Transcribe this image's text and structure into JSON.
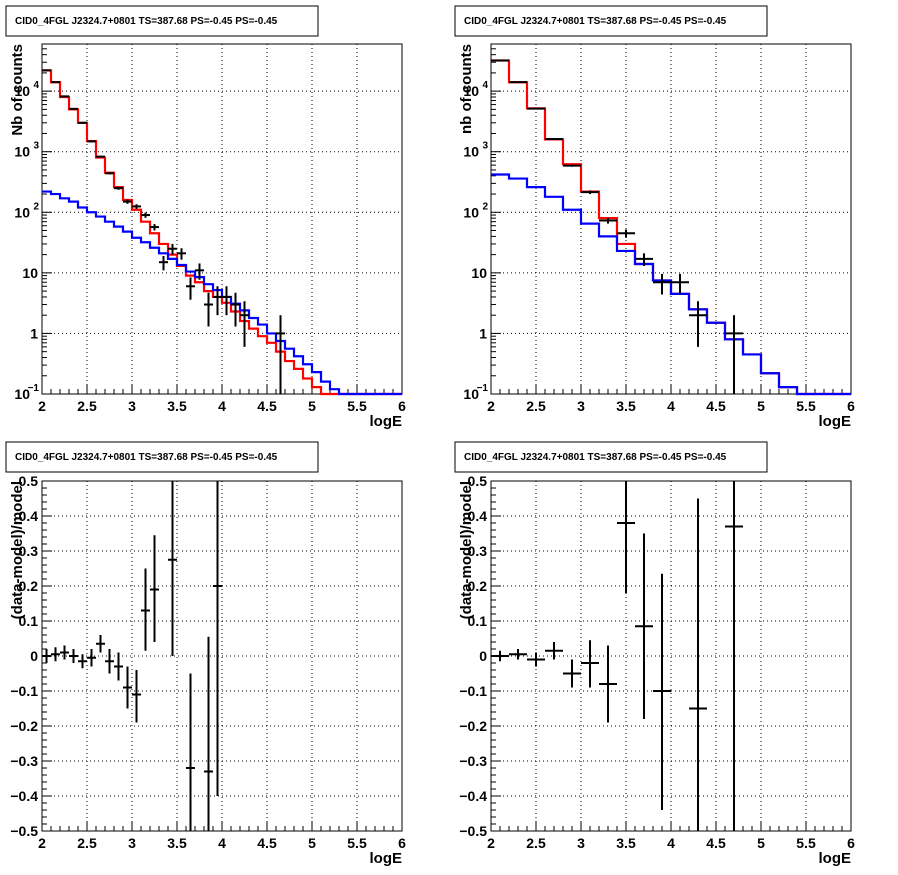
{
  "chart_data": [
    {
      "type": "line",
      "title": "CID0_4FGL J2324.7+0801 TS=387.68 PS=-0.45 PS=-0.45",
      "xlabel": "logE",
      "ylabel": "Nb of counts",
      "xlim": [
        2,
        6
      ],
      "ylim": [
        0.1,
        60000
      ],
      "yscale": "log",
      "grid": true,
      "xticks": [
        "2",
        "2.5",
        "3",
        "3.5",
        "4",
        "4.5",
        "5",
        "5.5",
        "6"
      ],
      "yticks": [
        {
          "v": 0.1,
          "base": "10",
          "exp": "−1"
        },
        {
          "v": 1,
          "base": "1",
          "exp": ""
        },
        {
          "v": 10,
          "base": "10",
          "exp": ""
        },
        {
          "v": 100,
          "base": "10",
          "exp": "2"
        },
        {
          "v": 1000,
          "base": "10",
          "exp": "3"
        },
        {
          "v": 10000,
          "base": "10",
          "exp": "4"
        }
      ],
      "bin_edges": [
        2.0,
        2.1,
        2.2,
        2.3,
        2.4,
        2.5,
        2.6,
        2.7,
        2.8,
        2.9,
        3.0,
        3.1,
        3.2,
        3.3,
        3.4,
        3.5,
        3.6,
        3.7,
        3.8,
        3.9,
        4.0,
        4.1,
        4.2,
        4.3,
        4.4,
        4.5,
        4.6,
        4.7,
        4.8,
        4.9,
        5.0,
        5.1,
        5.2,
        5.3,
        5.4,
        5.5,
        5.6,
        5.7,
        5.8,
        5.9,
        6.0
      ],
      "series": [
        {
          "name": "",
          "color": "#ff0000",
          "values": [
            22000,
            14000,
            8000,
            5000,
            3000,
            1500,
            800,
            450,
            260,
            160,
            110,
            70,
            45,
            30,
            20,
            13,
            9,
            7,
            5,
            4,
            3.2,
            2.3,
            1.6,
            1.2,
            0.9,
            0.7,
            0.5,
            0.35,
            0.26,
            0.18,
            0.13,
            0.1,
            0.1,
            0.1,
            0.1,
            0.1,
            0.1,
            0.1,
            0.1,
            0.1
          ]
        },
        {
          "name": "",
          "color": "#0000ff",
          "values": [
            220,
            200,
            170,
            150,
            120,
            100,
            85,
            70,
            58,
            48,
            38,
            32,
            26,
            21,
            17,
            13.5,
            10.5,
            8.5,
            6.5,
            5.2,
            4,
            3.1,
            2.4,
            1.8,
            1.4,
            1,
            0.75,
            0.56,
            0.42,
            0.31,
            0.23,
            0.16,
            0.12,
            0.1,
            0.1,
            0.1,
            0.1,
            0.1,
            0.1,
            0.1
          ]
        }
      ],
      "data_points": [
        {
          "x": 2.05,
          "xerr": 0.05,
          "y": 22000,
          "ylo": 21500,
          "yhi": 22500
        },
        {
          "x": 2.15,
          "xerr": 0.05,
          "y": 14100,
          "ylo": 13800,
          "yhi": 14400
        },
        {
          "x": 2.25,
          "xerr": 0.05,
          "y": 8200,
          "ylo": 8000,
          "yhi": 8400
        },
        {
          "x": 2.35,
          "xerr": 0.05,
          "y": 5100,
          "ylo": 4950,
          "yhi": 5250
        },
        {
          "x": 2.45,
          "xerr": 0.05,
          "y": 3000,
          "ylo": 2900,
          "yhi": 3100
        },
        {
          "x": 2.55,
          "xerr": 0.05,
          "y": 1480,
          "ylo": 1420,
          "yhi": 1540
        },
        {
          "x": 2.65,
          "xerr": 0.05,
          "y": 830,
          "ylo": 800,
          "yhi": 860
        },
        {
          "x": 2.75,
          "xerr": 0.05,
          "y": 440,
          "ylo": 420,
          "yhi": 460
        },
        {
          "x": 2.85,
          "xerr": 0.05,
          "y": 250,
          "ylo": 235,
          "yhi": 265
        },
        {
          "x": 2.95,
          "xerr": 0.05,
          "y": 150,
          "ylo": 138,
          "yhi": 162
        },
        {
          "x": 3.05,
          "xerr": 0.05,
          "y": 125,
          "ylo": 114,
          "yhi": 136
        },
        {
          "x": 3.15,
          "xerr": 0.05,
          "y": 90,
          "ylo": 81,
          "yhi": 99
        },
        {
          "x": 3.25,
          "xerr": 0.05,
          "y": 57,
          "ylo": 50,
          "yhi": 64
        },
        {
          "x": 3.35,
          "xerr": 0.05,
          "y": 15,
          "ylo": 11,
          "yhi": 19
        },
        {
          "x": 3.45,
          "xerr": 0.05,
          "y": 25,
          "ylo": 20,
          "yhi": 30
        },
        {
          "x": 3.55,
          "xerr": 0.05,
          "y": 21,
          "ylo": 16.5,
          "yhi": 25.5
        },
        {
          "x": 3.65,
          "xerr": 0.05,
          "y": 6,
          "ylo": 3.6,
          "yhi": 8.4
        },
        {
          "x": 3.75,
          "xerr": 0.05,
          "y": 11,
          "ylo": 7.7,
          "yhi": 14.3
        },
        {
          "x": 3.85,
          "xerr": 0.05,
          "y": 3,
          "ylo": 1.3,
          "yhi": 4.7
        },
        {
          "x": 3.95,
          "xerr": 0.05,
          "y": 4,
          "ylo": 2,
          "yhi": 6
        },
        {
          "x": 4.05,
          "xerr": 0.05,
          "y": 4,
          "ylo": 2,
          "yhi": 6
        },
        {
          "x": 4.15,
          "xerr": 0.05,
          "y": 3,
          "ylo": 1.3,
          "yhi": 4.7
        },
        {
          "x": 4.25,
          "xerr": 0.05,
          "y": 2,
          "ylo": 0.6,
          "yhi": 3.4
        },
        {
          "x": 4.65,
          "xerr": 0.05,
          "y": 1,
          "ylo": 0.1,
          "yhi": 2
        }
      ]
    },
    {
      "type": "line",
      "title": "CID0_4FGL J2324.7+0801 TS=387.68 PS=-0.45 PS=-0.45",
      "xlabel": "logE",
      "ylabel": "nb of counts",
      "xlim": [
        2,
        6
      ],
      "ylim": [
        0.1,
        60000
      ],
      "yscale": "log",
      "grid": true,
      "xticks": [
        "2",
        "2.5",
        "3",
        "3.5",
        "4",
        "4.5",
        "5",
        "5.5",
        "6"
      ],
      "yticks": [
        {
          "v": 0.1,
          "base": "10",
          "exp": "−1"
        },
        {
          "v": 1,
          "base": "1",
          "exp": ""
        },
        {
          "v": 10,
          "base": "10",
          "exp": ""
        },
        {
          "v": 100,
          "base": "10",
          "exp": "2"
        },
        {
          "v": 1000,
          "base": "10",
          "exp": "3"
        },
        {
          "v": 10000,
          "base": "10",
          "exp": "4"
        }
      ],
      "bin_edges": [
        2.0,
        2.2,
        2.4,
        2.6,
        2.8,
        3.0,
        3.2,
        3.4,
        3.6,
        3.8,
        4.0,
        4.2,
        4.4,
        4.6,
        4.8,
        5.0,
        5.2,
        5.4,
        5.6,
        5.8,
        6.0
      ],
      "series": [
        {
          "name": "",
          "color": "#ff0000",
          "values": [
            32000,
            14000,
            5200,
            1600,
            620,
            220,
            80,
            30,
            14,
            7.5,
            4.5,
            2.5,
            1.5,
            0.8,
            0.45,
            0.22,
            0.13,
            0.1,
            0.1,
            0.1
          ]
        },
        {
          "name": "",
          "color": "#0000ff",
          "values": [
            420,
            360,
            260,
            180,
            110,
            65,
            40,
            23,
            14,
            7.5,
            4.5,
            2.5,
            1.5,
            0.8,
            0.45,
            0.22,
            0.13,
            0.1,
            0.1,
            0.1
          ]
        }
      ],
      "data_points": [
        {
          "x": 2.1,
          "xerr": 0.1,
          "y": 32000,
          "ylo": 31600,
          "yhi": 32400
        },
        {
          "x": 2.3,
          "xerr": 0.1,
          "y": 14100,
          "ylo": 13850,
          "yhi": 14350
        },
        {
          "x": 2.5,
          "xerr": 0.1,
          "y": 5150,
          "ylo": 5000,
          "yhi": 5300
        },
        {
          "x": 2.7,
          "xerr": 0.1,
          "y": 1620,
          "ylo": 1580,
          "yhi": 1660
        },
        {
          "x": 2.9,
          "xerr": 0.1,
          "y": 590,
          "ylo": 565,
          "yhi": 615
        },
        {
          "x": 3.1,
          "xerr": 0.1,
          "y": 215,
          "ylo": 200,
          "yhi": 230
        },
        {
          "x": 3.3,
          "xerr": 0.1,
          "y": 73,
          "ylo": 65,
          "yhi": 81
        },
        {
          "x": 3.5,
          "xerr": 0.1,
          "y": 45,
          "ylo": 38,
          "yhi": 52
        },
        {
          "x": 3.7,
          "xerr": 0.1,
          "y": 17,
          "ylo": 13,
          "yhi": 21
        },
        {
          "x": 3.9,
          "xerr": 0.1,
          "y": 7,
          "ylo": 4.4,
          "yhi": 9.6
        },
        {
          "x": 4.1,
          "xerr": 0.1,
          "y": 7,
          "ylo": 4.4,
          "yhi": 9.6
        },
        {
          "x": 4.3,
          "xerr": 0.1,
          "y": 2,
          "ylo": 0.6,
          "yhi": 3.4
        },
        {
          "x": 4.7,
          "xerr": 0.1,
          "y": 1,
          "ylo": 0.1,
          "yhi": 2
        }
      ]
    },
    {
      "type": "scatter",
      "title": "CID0_4FGL J2324.7+0801 TS=387.68 PS=-0.45 PS=-0.45",
      "xlabel": "logE",
      "ylabel": "(data-model)/model",
      "xlim": [
        2,
        6
      ],
      "ylim": [
        -0.5,
        0.5
      ],
      "yscale": "linear",
      "grid": true,
      "xticks": [
        "2",
        "2.5",
        "3",
        "3.5",
        "4",
        "4.5",
        "5",
        "5.5",
        "6"
      ],
      "yticks": [
        {
          "v": -0.5,
          "base": "−0.5",
          "exp": ""
        },
        {
          "v": -0.4,
          "base": "−0.4",
          "exp": ""
        },
        {
          "v": -0.3,
          "base": "−0.3",
          "exp": ""
        },
        {
          "v": -0.2,
          "base": "−0.2",
          "exp": ""
        },
        {
          "v": -0.1,
          "base": "−0.1",
          "exp": ""
        },
        {
          "v": 0,
          "base": "0",
          "exp": ""
        },
        {
          "v": 0.1,
          "base": "0.1",
          "exp": ""
        },
        {
          "v": 0.2,
          "base": "0.2",
          "exp": ""
        },
        {
          "v": 0.3,
          "base": "0.3",
          "exp": ""
        },
        {
          "v": 0.4,
          "base": "0.4",
          "exp": ""
        },
        {
          "v": 0.5,
          "base": "0.5",
          "exp": ""
        }
      ],
      "data_points": [
        {
          "x": 2.05,
          "xerr": 0.05,
          "y": 0.0,
          "ylo": -0.02,
          "yhi": 0.02
        },
        {
          "x": 2.15,
          "xerr": 0.05,
          "y": 0.005,
          "ylo": -0.015,
          "yhi": 0.025
        },
        {
          "x": 2.25,
          "xerr": 0.05,
          "y": 0.01,
          "ylo": -0.01,
          "yhi": 0.03
        },
        {
          "x": 2.35,
          "xerr": 0.05,
          "y": 0.0,
          "ylo": -0.02,
          "yhi": 0.02
        },
        {
          "x": 2.45,
          "xerr": 0.05,
          "y": -0.015,
          "ylo": -0.035,
          "yhi": 0.005
        },
        {
          "x": 2.55,
          "xerr": 0.05,
          "y": -0.005,
          "ylo": -0.03,
          "yhi": 0.02
        },
        {
          "x": 2.65,
          "xerr": 0.05,
          "y": 0.035,
          "ylo": 0.01,
          "yhi": 0.06
        },
        {
          "x": 2.75,
          "xerr": 0.05,
          "y": -0.015,
          "ylo": -0.05,
          "yhi": 0.02
        },
        {
          "x": 2.85,
          "xerr": 0.05,
          "y": -0.03,
          "ylo": -0.07,
          "yhi": 0.01
        },
        {
          "x": 2.95,
          "xerr": 0.05,
          "y": -0.09,
          "ylo": -0.15,
          "yhi": -0.03
        },
        {
          "x": 3.05,
          "xerr": 0.05,
          "y": -0.11,
          "ylo": -0.19,
          "yhi": -0.04
        },
        {
          "x": 3.15,
          "xerr": 0.05,
          "y": 0.13,
          "ylo": 0.015,
          "yhi": 0.25
        },
        {
          "x": 3.25,
          "xerr": 0.05,
          "y": 0.19,
          "ylo": 0.04,
          "yhi": 0.345
        },
        {
          "x": 3.45,
          "xerr": 0.05,
          "y": 0.275,
          "ylo": 0.0,
          "yhi": 0.5
        },
        {
          "x": 3.65,
          "xerr": 0.05,
          "y": -0.32,
          "ylo": -0.5,
          "yhi": -0.05
        },
        {
          "x": 3.85,
          "xerr": 0.05,
          "y": -0.33,
          "ylo": -0.5,
          "yhi": 0.055
        },
        {
          "x": 3.95,
          "xerr": 0.05,
          "y": 0.2,
          "ylo": -0.4,
          "yhi": 0.5
        }
      ]
    },
    {
      "type": "scatter",
      "title": "CID0_4FGL J2324.7+0801 TS=387.68 PS=-0.45 PS=-0.45",
      "xlabel": "logE",
      "ylabel": "(data-model)/model",
      "xlim": [
        2,
        6
      ],
      "ylim": [
        -0.5,
        0.5
      ],
      "yscale": "linear",
      "grid": true,
      "xticks": [
        "2",
        "2.5",
        "3",
        "3.5",
        "4",
        "4.5",
        "5",
        "5.5",
        "6"
      ],
      "yticks": [
        {
          "v": -0.5,
          "base": "−0.5",
          "exp": ""
        },
        {
          "v": -0.4,
          "base": "−0.4",
          "exp": ""
        },
        {
          "v": -0.3,
          "base": "−0.3",
          "exp": ""
        },
        {
          "v": -0.2,
          "base": "−0.2",
          "exp": ""
        },
        {
          "v": -0.1,
          "base": "−0.1",
          "exp": ""
        },
        {
          "v": 0,
          "base": "0",
          "exp": ""
        },
        {
          "v": 0.1,
          "base": "0.1",
          "exp": ""
        },
        {
          "v": 0.2,
          "base": "0.2",
          "exp": ""
        },
        {
          "v": 0.3,
          "base": "0.3",
          "exp": ""
        },
        {
          "v": 0.4,
          "base": "0.4",
          "exp": ""
        },
        {
          "v": 0.5,
          "base": "0.5",
          "exp": ""
        }
      ],
      "data_points": [
        {
          "x": 2.1,
          "xerr": 0.1,
          "y": 0.0,
          "ylo": -0.015,
          "yhi": 0.015
        },
        {
          "x": 2.3,
          "xerr": 0.1,
          "y": 0.005,
          "ylo": -0.01,
          "yhi": 0.02
        },
        {
          "x": 2.5,
          "xerr": 0.1,
          "y": -0.01,
          "ylo": -0.03,
          "yhi": 0.01
        },
        {
          "x": 2.7,
          "xerr": 0.1,
          "y": 0.015,
          "ylo": -0.01,
          "yhi": 0.04
        },
        {
          "x": 2.9,
          "xerr": 0.1,
          "y": -0.05,
          "ylo": -0.09,
          "yhi": -0.01
        },
        {
          "x": 3.1,
          "xerr": 0.1,
          "y": -0.02,
          "ylo": -0.09,
          "yhi": 0.045
        },
        {
          "x": 3.3,
          "xerr": 0.1,
          "y": -0.08,
          "ylo": -0.19,
          "yhi": 0.03
        },
        {
          "x": 3.5,
          "xerr": 0.1,
          "y": 0.38,
          "ylo": 0.18,
          "yhi": 0.5
        },
        {
          "x": 3.7,
          "xerr": 0.1,
          "y": 0.085,
          "ylo": -0.18,
          "yhi": 0.35
        },
        {
          "x": 3.9,
          "xerr": 0.1,
          "y": -0.1,
          "ylo": -0.44,
          "yhi": 0.235
        },
        {
          "x": 4.3,
          "xerr": 0.1,
          "y": -0.15,
          "ylo": -0.5,
          "yhi": 0.45
        },
        {
          "x": 4.7,
          "xerr": 0.1,
          "y": 0.37,
          "ylo": -0.5,
          "yhi": 0.5
        }
      ]
    }
  ]
}
